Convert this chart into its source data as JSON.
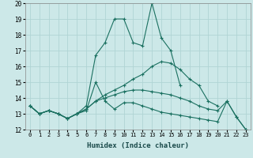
{
  "xlabel": "Humidex (Indice chaleur)",
  "background_color": "#cce8e8",
  "grid_color": "#b0d4d4",
  "line_color": "#1a7060",
  "x_values": [
    0,
    1,
    2,
    3,
    4,
    5,
    6,
    7,
    8,
    9,
    10,
    11,
    12,
    13,
    14,
    15,
    16,
    17,
    18,
    19,
    20,
    21,
    22,
    23
  ],
  "series": [
    [
      13.5,
      13.0,
      13.2,
      13.0,
      12.7,
      13.0,
      13.2,
      15.0,
      13.8,
      13.3,
      13.7,
      13.7,
      13.5,
      13.3,
      13.1,
      13.0,
      12.9,
      12.8,
      12.7,
      12.6,
      12.5,
      13.8,
      12.8,
      12.0
    ],
    [
      13.5,
      13.0,
      13.2,
      13.0,
      12.7,
      13.0,
      13.5,
      16.7,
      17.5,
      19.0,
      19.0,
      17.5,
      17.3,
      20.0,
      17.8,
      17.0,
      14.8,
      null,
      null,
      null,
      null,
      null,
      null,
      null
    ],
    [
      13.5,
      13.0,
      13.2,
      13.0,
      12.7,
      13.0,
      13.3,
      13.8,
      14.2,
      14.5,
      14.8,
      15.2,
      15.5,
      16.0,
      16.3,
      16.2,
      15.8,
      15.2,
      14.8,
      13.8,
      13.5,
      null,
      null,
      null
    ],
    [
      13.5,
      13.0,
      13.2,
      13.0,
      12.7,
      13.0,
      13.3,
      13.8,
      14.0,
      14.2,
      14.4,
      14.5,
      14.5,
      14.4,
      14.3,
      14.2,
      14.0,
      13.8,
      13.5,
      13.3,
      13.2,
      13.8,
      12.8,
      12.0
    ]
  ],
  "ylim": [
    12,
    20
  ],
  "xlim": [
    -0.5,
    23.5
  ],
  "yticks": [
    12,
    13,
    14,
    15,
    16,
    17,
    18,
    19,
    20
  ],
  "xticks": [
    0,
    1,
    2,
    3,
    4,
    5,
    6,
    7,
    8,
    9,
    10,
    11,
    12,
    13,
    14,
    15,
    16,
    17,
    18,
    19,
    20,
    21,
    22,
    23
  ]
}
